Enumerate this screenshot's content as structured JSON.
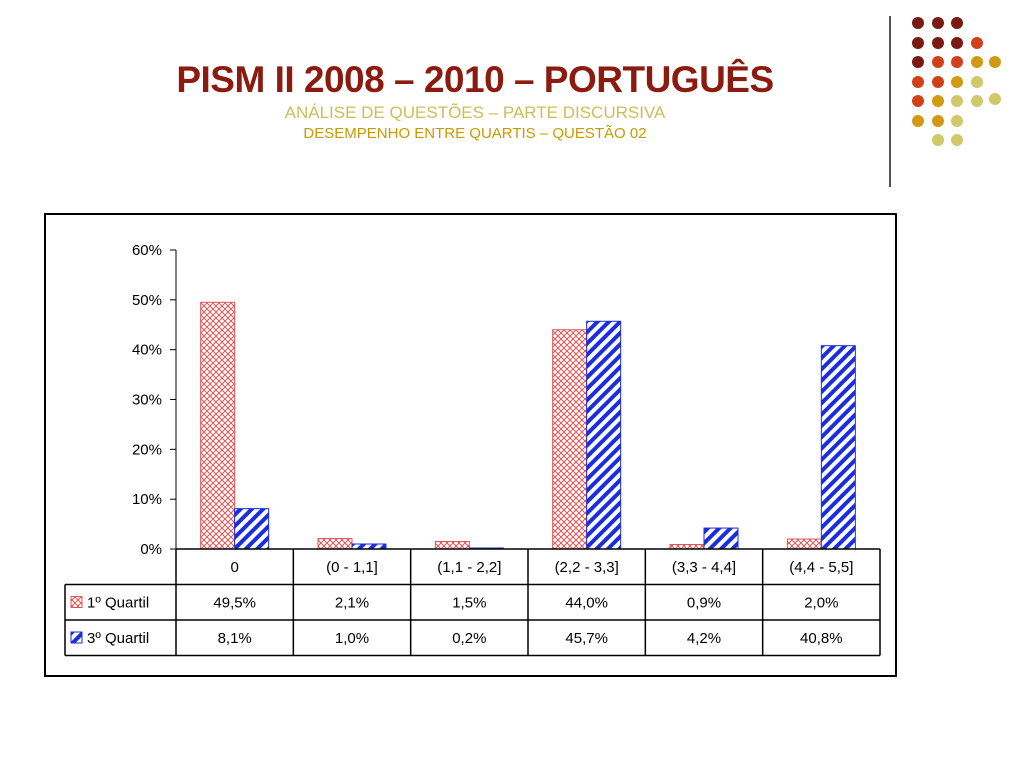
{
  "header": {
    "title": "PISM II 2008 – 2010 – PORTUGUÊS",
    "subtitle1": "ANÁLISE DE QUESTÕES – PARTE DISCURSIVA",
    "subtitle2": "DESEMPENHO ENTRE QUARTIS – QUESTÃO 02"
  },
  "colors": {
    "title": "#8b1a0f",
    "subtitle1": "#c9c05a",
    "subtitle2": "#c89a00",
    "dots": [
      "#7a1a12",
      "#d2401a",
      "#d29a12",
      "#cfc96a"
    ],
    "series1": "#e05555",
    "series2": "#1a2ee0"
  },
  "chart_data": {
    "type": "bar",
    "categories": [
      "0",
      "(0 - 1,1]",
      "(1,1 - 2,2]",
      "(2,2 - 3,3]",
      "(3,3 - 4,4]",
      "(4,4 - 5,5]"
    ],
    "series": [
      {
        "name": "1º Quartil",
        "values": [
          49.5,
          2.1,
          1.5,
          44.0,
          0.9,
          2.0
        ],
        "labels": [
          "49,5%",
          "2,1%",
          "1,5%",
          "44,0%",
          "0,9%",
          "2,0%"
        ]
      },
      {
        "name": "3º Quartil",
        "values": [
          8.1,
          1.0,
          0.2,
          45.7,
          4.2,
          40.8
        ],
        "labels": [
          "8,1%",
          "1,0%",
          "0,2%",
          "45,7%",
          "4,2%",
          "40,8%"
        ]
      }
    ],
    "yticks": [
      "0%",
      "10%",
      "20%",
      "30%",
      "40%",
      "50%",
      "60%"
    ],
    "ylim": [
      0,
      60
    ],
    "grid": false,
    "legend": "data table"
  }
}
